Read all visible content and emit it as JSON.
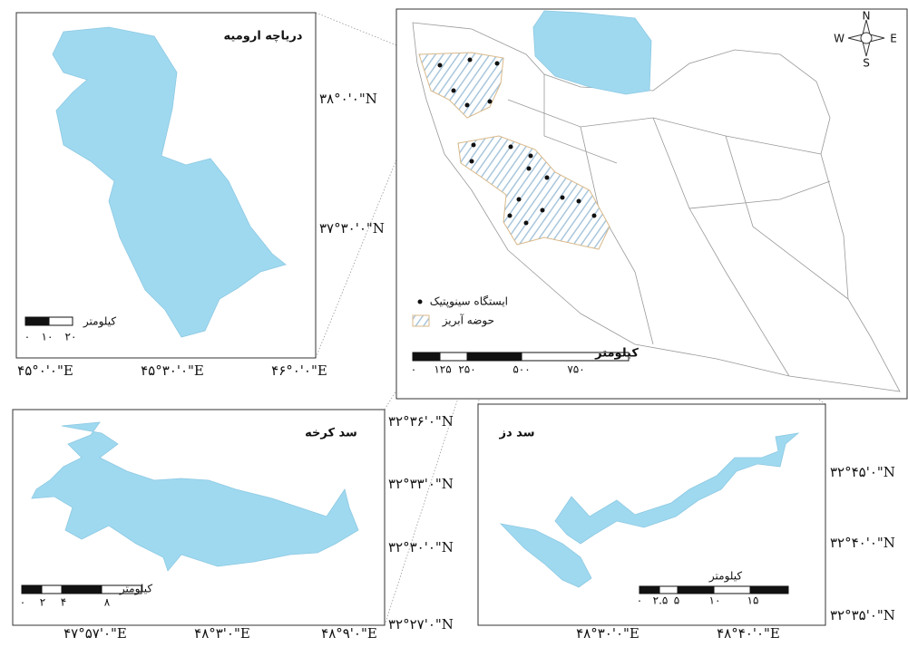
{
  "urmia_panel": {
    "title": "دریاچه ارومیه",
    "scale_unit": "کیلومتر",
    "scale_labels": [
      "۰",
      "۱۰",
      "۲۰"
    ],
    "lat_labels": [
      "۳۸°۰'۰\"N",
      "۳۷°۳۰'۰\"N"
    ],
    "lon_labels": [
      "۴۵°۰'۰\"E",
      "۴۵°۳۰'۰\"E",
      "۴۶°۰'۰\"E"
    ]
  },
  "main_map": {
    "legend": {
      "stations": "ایستگاه سینوپتیک",
      "basin": "حوضه آبریز"
    },
    "scale_unit": "کیلومتر",
    "scale_labels": [
      "۰",
      "۱۲۵",
      "۲۵۰",
      "۵۰۰",
      "۷۵۰"
    ],
    "compass": [
      "N",
      "S",
      "E",
      "W"
    ]
  },
  "karkheh_panel": {
    "title": "سد کرخه",
    "scale_unit": "کیلومتر",
    "scale_labels": [
      "۰",
      "۲",
      "۴",
      "۸"
    ],
    "lat_labels": [
      "۳۲°۳۶'۰\"N",
      "۳۲°۳۳'۰\"N",
      "۳۲°۳۰'۰\"N",
      "۳۲°۲۷'۰\"N"
    ],
    "lon_labels": [
      "۴۷°۵۷'۰\"E",
      "۴۸°۳'۰\"E",
      "۴۸°۹'۰\"E"
    ]
  },
  "dez_panel": {
    "title": "سد دز",
    "scale_unit": "کیلومتر",
    "scale_labels": [
      "۰",
      "۲.۵",
      "۵",
      "۱۰",
      "۱۵"
    ],
    "lat_labels": [
      "۳۲°۴۵'۰\"N",
      "۳۲°۴۰'۰\"N",
      "۳۲°۳۵'۰\"N"
    ],
    "lon_labels": [
      "۴۸°۳۰'۰\"E",
      "۴۸°۴۰'۰\"E"
    ]
  }
}
